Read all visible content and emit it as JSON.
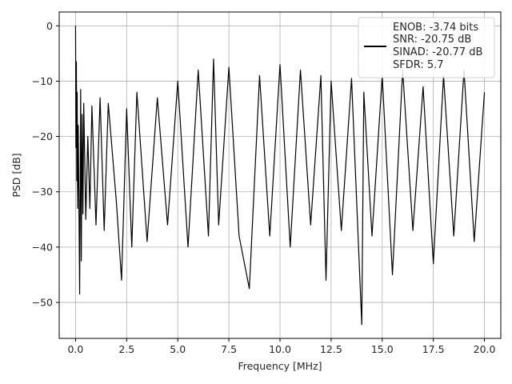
{
  "chart_data": {
    "type": "line",
    "xlabel": "Frequency [MHz]",
    "ylabel": "PSD [dB]",
    "xlim": [
      -0.8,
      20.8
    ],
    "ylim": [
      -56.5,
      2.5
    ],
    "xticks": [
      0.0,
      2.5,
      5.0,
      7.5,
      10.0,
      12.5,
      15.0,
      17.5,
      20.0
    ],
    "xtick_labels": [
      "0.0",
      "2.5",
      "5.0",
      "7.5",
      "10.0",
      "12.5",
      "15.0",
      "17.5",
      "20.0"
    ],
    "yticks": [
      0,
      -10,
      -20,
      -30,
      -40,
      -50
    ],
    "ytick_labels": [
      "0",
      "−10",
      "−20",
      "−30",
      "−40",
      "−50"
    ],
    "grid": true,
    "legend_placement": "upper-right",
    "series": [
      {
        "color": "#000000",
        "x": [
          0.0,
          0.02,
          0.04,
          0.06,
          0.08,
          0.1,
          0.13,
          0.16,
          0.2,
          0.25,
          0.28,
          0.32,
          0.36,
          0.4,
          0.5,
          0.6,
          0.7,
          0.8,
          1.0,
          1.2,
          1.4,
          1.6,
          2.0,
          2.25,
          2.5,
          2.75,
          3.0,
          3.5,
          4.0,
          4.5,
          5.0,
          5.5,
          6.0,
          6.5,
          6.75,
          7.0,
          7.5,
          8.0,
          8.5,
          9.0,
          9.5,
          10.0,
          10.5,
          11.0,
          11.5,
          12.0,
          12.25,
          12.5,
          13.0,
          13.5,
          14.0,
          14.1,
          14.5,
          15.0,
          15.5,
          16.0,
          16.5,
          17.0,
          17.5,
          18.0,
          18.5,
          19.0,
          19.5,
          20.0
        ],
        "y": [
          0.0,
          -22.0,
          -6.5,
          -28.0,
          -12.0,
          -33.0,
          -18.0,
          -30.0,
          -48.5,
          -11.5,
          -42.5,
          -16.0,
          -34.0,
          -14.0,
          -35.0,
          -20.0,
          -33.0,
          -14.5,
          -36.0,
          -13.0,
          -37.0,
          -14.0,
          -32.0,
          -46.0,
          -15.0,
          -40.0,
          -12.0,
          -39.0,
          -13.0,
          -36.0,
          -10.0,
          -40.0,
          -8.0,
          -38.0,
          -6.0,
          -36.0,
          -7.5,
          -38.0,
          -47.5,
          -9.0,
          -38.0,
          -7.0,
          -40.0,
          -8.0,
          -36.0,
          -9.0,
          -46.0,
          -10.0,
          -37.0,
          -9.5,
          -54.0,
          -12.0,
          -38.0,
          -9.0,
          -45.0,
          -8.0,
          -37.0,
          -11.0,
          -43.0,
          -9.0,
          -38.0,
          -8.0,
          -39.0,
          -12.0
        ]
      }
    ],
    "legend": {
      "entries": [
        "ENOB: -3.74 bits",
        "SNR: -20.75 dB",
        "SINAD: -20.77 dB",
        "SFDR: 5.7"
      ]
    }
  }
}
